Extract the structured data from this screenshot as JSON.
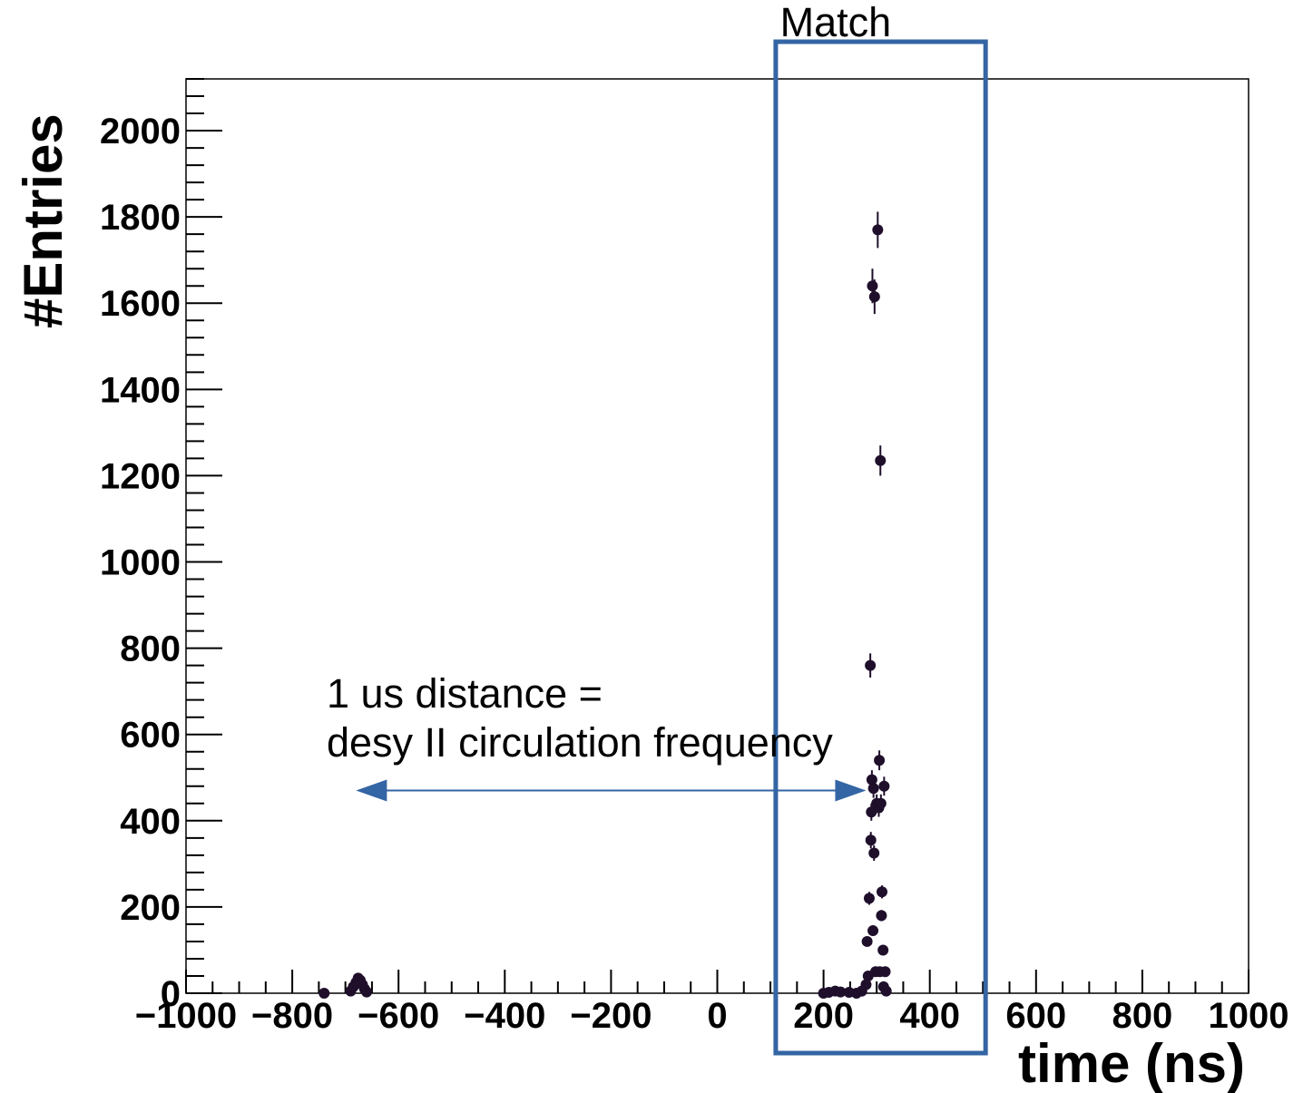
{
  "chart_data": {
    "type": "scatter",
    "title": "",
    "xlabel": "time (ns)",
    "ylabel": "#Entries",
    "xlim": [
      -1000,
      1000
    ],
    "ylim": [
      0,
      2120
    ],
    "x_ticks": [
      -1000,
      -800,
      -600,
      -400,
      -200,
      0,
      200,
      400,
      600,
      800,
      1000
    ],
    "y_ticks": [
      0,
      200,
      400,
      600,
      800,
      1000,
      1200,
      1400,
      1600,
      1800,
      2000
    ],
    "grid": false,
    "legend": "none",
    "series": [
      {
        "marker_color": "#1f0f2b",
        "points": [
          {
            "x": -740,
            "y": 0,
            "err": 0
          },
          {
            "x": -690,
            "y": 5,
            "err": 0
          },
          {
            "x": -685,
            "y": 15,
            "err": 0
          },
          {
            "x": -680,
            "y": 25,
            "err": 0
          },
          {
            "x": -676,
            "y": 35,
            "err": 0
          },
          {
            "x": -672,
            "y": 30,
            "err": 0
          },
          {
            "x": -668,
            "y": 20,
            "err": 0
          },
          {
            "x": -664,
            "y": 10,
            "err": 0
          },
          {
            "x": -660,
            "y": 3,
            "err": 0
          },
          {
            "x": 200,
            "y": 0,
            "err": 0
          },
          {
            "x": 210,
            "y": 2,
            "err": 0
          },
          {
            "x": 222,
            "y": 5,
            "err": 0
          },
          {
            "x": 232,
            "y": 3,
            "err": 0
          },
          {
            "x": 248,
            "y": 2,
            "err": 0
          },
          {
            "x": 262,
            "y": 0,
            "err": 0
          },
          {
            "x": 272,
            "y": 5,
            "err": 0
          },
          {
            "x": 280,
            "y": 20,
            "err": 0
          },
          {
            "x": 282,
            "y": 120,
            "err": 10
          },
          {
            "x": 284,
            "y": 40,
            "err": 0
          },
          {
            "x": 286,
            "y": 220,
            "err": 15
          },
          {
            "x": 288,
            "y": 760,
            "err": 28
          },
          {
            "x": 289,
            "y": 355,
            "err": 19
          },
          {
            "x": 290,
            "y": 420,
            "err": 20
          },
          {
            "x": 291,
            "y": 495,
            "err": 22
          },
          {
            "x": 292,
            "y": 1640,
            "err": 40
          },
          {
            "x": 293,
            "y": 145,
            "err": 12
          },
          {
            "x": 294,
            "y": 475,
            "err": 22
          },
          {
            "x": 295,
            "y": 325,
            "err": 18
          },
          {
            "x": 296,
            "y": 1615,
            "err": 40
          },
          {
            "x": 298,
            "y": 50,
            "err": 0
          },
          {
            "x": 300,
            "y": 440,
            "err": 21
          },
          {
            "x": 302,
            "y": 1770,
            "err": 42
          },
          {
            "x": 304,
            "y": 430,
            "err": 21
          },
          {
            "x": 305,
            "y": 540,
            "err": 23
          },
          {
            "x": 306,
            "y": 50,
            "err": 0
          },
          {
            "x": 307,
            "y": 1235,
            "err": 35
          },
          {
            "x": 308,
            "y": 440,
            "err": 21
          },
          {
            "x": 309,
            "y": 180,
            "err": 13
          },
          {
            "x": 310,
            "y": 235,
            "err": 15
          },
          {
            "x": 312,
            "y": 100,
            "err": 10
          },
          {
            "x": 313,
            "y": 15,
            "err": 0
          },
          {
            "x": 314,
            "y": 480,
            "err": 22
          },
          {
            "x": 316,
            "y": 50,
            "err": 0
          },
          {
            "x": 318,
            "y": 5,
            "err": 0
          }
        ]
      }
    ],
    "annotations": {
      "match_label": "Match",
      "match_range": [
        110,
        505
      ],
      "distance_line1": "1 us distance =",
      "distance_line2": "desy II circulation frequency",
      "arrow_x": [
        -680,
        280
      ],
      "arrow_y": 470,
      "accent_color": "#3465a4"
    }
  }
}
